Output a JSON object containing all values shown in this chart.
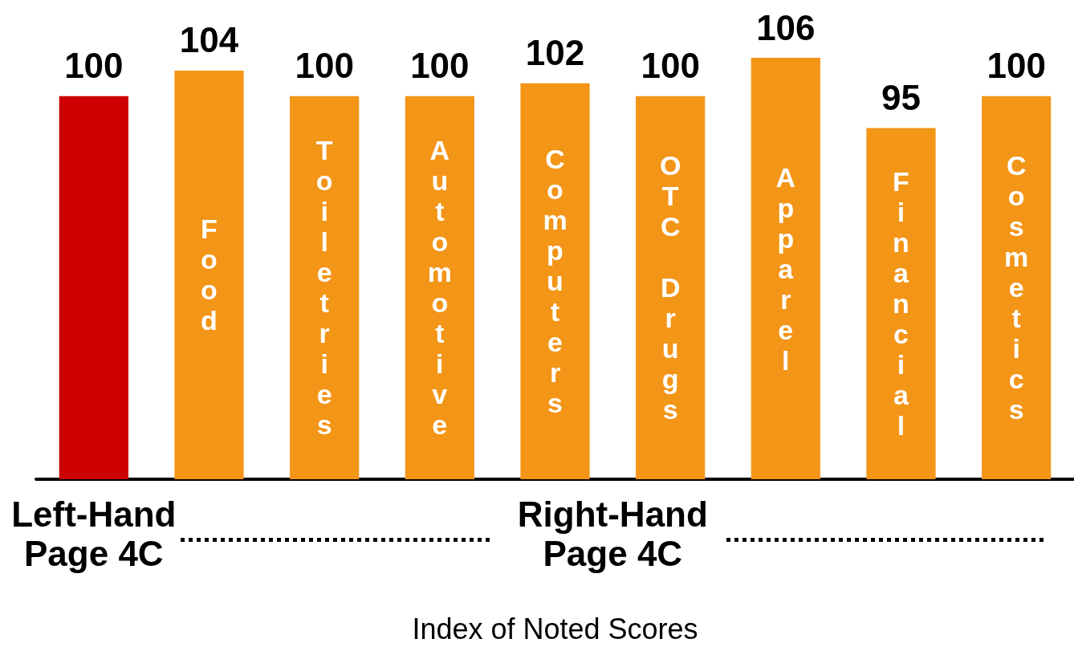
{
  "chart_data": {
    "type": "bar",
    "xlabel": "Index of Noted Scores",
    "categories": [
      null,
      "Food",
      "Toiletries",
      "Automotive",
      "Computers",
      "OTC Drugs",
      "Apparel",
      "Financial",
      "Cosmetics"
    ],
    "values": [
      100,
      104,
      100,
      100,
      102,
      100,
      106,
      95,
      100
    ],
    "colors": [
      "#cc0000",
      "#f39517",
      "#f39517",
      "#f39517",
      "#f39517",
      "#f39517",
      "#f39517",
      "#f39517",
      "#f39517"
    ],
    "ylim": [
      40,
      106
    ],
    "data_labels": true,
    "annotations": [
      "Left-Hand Page 4C",
      "Right-Hand Page 4C"
    ]
  }
}
